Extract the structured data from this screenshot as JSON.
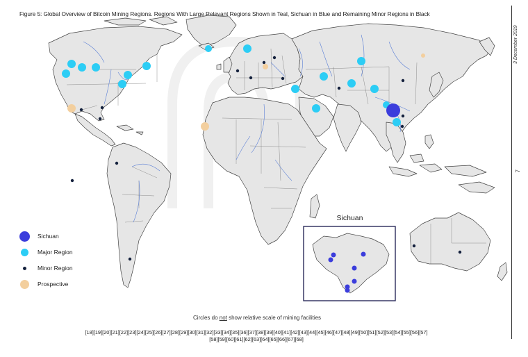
{
  "title": "Figure 5: Global Overview of Bitcoin Mining Regions. Regions With Large Relevant Regions Shown in Teal, Sichuan in Blue and Remaining Minor Regions in Black",
  "side": {
    "date": "3 December 2019",
    "page": "7"
  },
  "colors": {
    "sichuan": "#3b3ddc",
    "major": "#2ccdf5",
    "minor": "#14213d",
    "prospective": "#f3cf9e",
    "land": "#e6e6e6",
    "rivers": "#5a7fd6"
  },
  "legend": [
    {
      "key": "sichuan",
      "label": "Sichuan"
    },
    {
      "key": "major",
      "label": "Major Region"
    },
    {
      "key": "minor",
      "label": "Minor Region"
    },
    {
      "key": "prospective",
      "label": "Prospective"
    }
  ],
  "inset": {
    "title": "Sichuan"
  },
  "note": {
    "before": "Circles do ",
    "underlined": "not",
    "after": " show relative scale of mining facilities"
  },
  "references": {
    "line1": "[18][19][20][21][22][23][24][25][26][27][28][29][30][31][32][33][34][35][36][37][38][39][40][41][42][43][44][45][46][47][48][49][50][51][52][53][54][55][56][57]",
    "line2": "[58][59][60][61][62][63][64][65][66][67][68]"
  }
}
